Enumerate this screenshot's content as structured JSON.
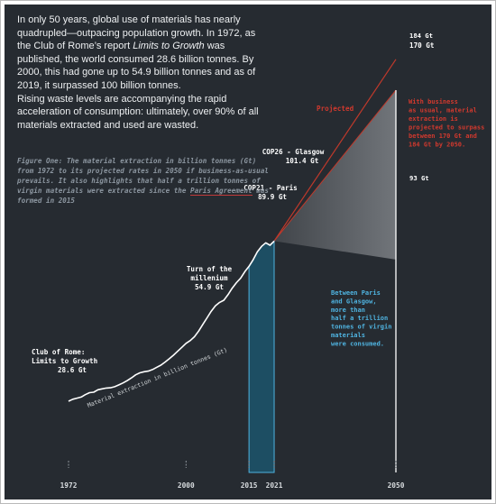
{
  "intro": {
    "part1": "In only 50 years, global use of materials has nearly quadrupled—outpacing population growth.  In 1972, as the Club of Rome’s report ",
    "report_title": "Limits to Growth",
    "part2": " was published, the world consumed 28.6 billion tonnes. By 2000, this had gone up to 54.9 billion tonnes and as of 2019, it surpassed 100 billion tonnes.",
    "part3": "Rising waste levels are accompanying the rapid acceleration of consumption: ultimately, over 90% of all materials extracted and used are wasted."
  },
  "caption": {
    "text": "Figure One: The material extraction in billion tonnes (Gt) from 1972 to its projected rates in 2050 if business-as-usual prevails. It also highlights that half a trillion tonnes of virgin materials were extracted since the ",
    "highlight": "Paris Agreement",
    "tail": " was formed in 2015"
  },
  "colors": {
    "background": "#262b31",
    "line": "#ffffff",
    "projected_fill": "#6a6e73",
    "projected_line": "#c0392b",
    "highlight_fill": "#1d4e63",
    "highlight_border": "#4fb3e0",
    "blue_text": "#4fb3e0",
    "red_text": "#d0392e"
  },
  "chart_data": {
    "type": "line",
    "ylabel": "Material extraction in billion tonnes (Gt)",
    "xlim": [
      1972,
      2050
    ],
    "x_ticks": [
      "1972",
      "2000",
      "2015",
      "2021",
      "2050"
    ],
    "series": [
      {
        "values": [
          [
            1972,
            28.6
          ],
          [
            1973,
            29.5
          ],
          [
            1974,
            30.0
          ],
          [
            1975,
            30.5
          ],
          [
            1976,
            31.6
          ],
          [
            1977,
            32.5
          ],
          [
            1978,
            32.7
          ],
          [
            1979,
            33.8
          ],
          [
            1980,
            34.2
          ],
          [
            1981,
            34.6
          ],
          [
            1982,
            34.7
          ],
          [
            1983,
            35.2
          ],
          [
            1984,
            36.0
          ],
          [
            1985,
            36.9
          ],
          [
            1986,
            38.0
          ],
          [
            1987,
            39.2
          ],
          [
            1988,
            40.6
          ],
          [
            1989,
            41.5
          ],
          [
            1990,
            42.0
          ],
          [
            1991,
            42.3
          ],
          [
            1992,
            43.0
          ],
          [
            1993,
            44.0
          ],
          [
            1994,
            45.0
          ],
          [
            1995,
            46.4
          ],
          [
            1996,
            47.9
          ],
          [
            1997,
            49.5
          ],
          [
            1998,
            51.3
          ],
          [
            1999,
            53.1
          ],
          [
            2000,
            54.9
          ],
          [
            2001,
            56.2
          ],
          [
            2002,
            57.9
          ],
          [
            2003,
            60.5
          ],
          [
            2004,
            63.5
          ],
          [
            2005,
            66.5
          ],
          [
            2006,
            69.5
          ],
          [
            2007,
            72.0
          ],
          [
            2008,
            73.5
          ],
          [
            2009,
            74.5
          ],
          [
            2010,
            77.0
          ],
          [
            2011,
            80.0
          ],
          [
            2012,
            82.5
          ],
          [
            2013,
            84.5
          ],
          [
            2014,
            87.5
          ],
          [
            2015,
            89.9
          ],
          [
            2016,
            93.0
          ],
          [
            2017,
            96.5
          ],
          [
            2018,
            99.0
          ],
          [
            2019,
            100.6
          ],
          [
            2020,
            99.5
          ],
          [
            2021,
            101.4
          ]
        ]
      }
    ],
    "projection": {
      "label": "Projected",
      "from": [
        2021,
        101.4
      ],
      "upper": [
        2050,
        184
      ],
      "mid": [
        2050,
        170
      ],
      "lower": [
        2050,
        93
      ]
    },
    "annotations": {
      "club_of_rome": {
        "line1": "Club of Rome:",
        "line2": "Limits to Growth",
        "value": "28.6 Gt"
      },
      "millenium": {
        "line1": "Turn of the",
        "line2": "millenium",
        "value": "54.9 Gt"
      },
      "cop21": {
        "line1": "COP21 - Paris",
        "value": "89.9 Gt"
      },
      "cop26": {
        "line1": "COP26 - Glasgow",
        "value": "101.4 Gt"
      },
      "upper_value": "184 Gt",
      "mid_value": "170 Gt",
      "lower_value": "93 Gt",
      "business_note": [
        "With business",
        "as usual, material",
        "extraction is",
        "projected to surpass",
        "between 170 Gt and",
        "184 Gt by 2050."
      ],
      "between_note": [
        "Between Paris",
        "and Glasgow,",
        "more than",
        "half a trillion",
        "tonnes of virgin",
        "materials",
        "were consumed."
      ]
    }
  }
}
